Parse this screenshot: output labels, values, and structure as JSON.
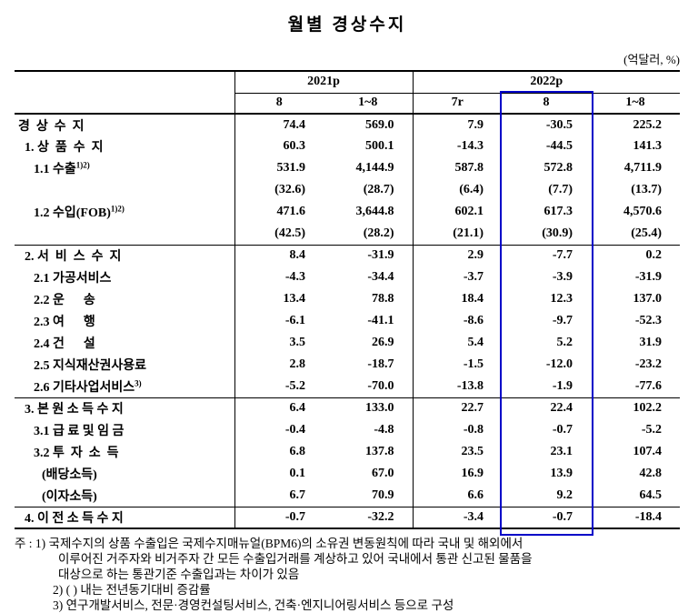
{
  "title": "월별 경상수지",
  "unit_label": "(억달러, %)",
  "table": {
    "col_groups": [
      {
        "label": "2021p"
      },
      {
        "label": "2022p"
      }
    ],
    "col_headers": [
      "8",
      "1~8",
      "7r",
      "8",
      "1~8"
    ],
    "highlight_color": "#0000c8",
    "rows": [
      {
        "label": "경  상  수  지",
        "indent": 0,
        "values": [
          "74.4",
          "569.0",
          "7.9",
          "-30.5",
          "225.2"
        ]
      },
      {
        "label": "1. 상  품  수  지",
        "indent": 1,
        "values": [
          "60.3",
          "500.1",
          "-14.3",
          "-44.5",
          "141.3"
        ]
      },
      {
        "label": "1.1 수출",
        "sup": "1)2)",
        "indent": 2,
        "values": [
          "531.9",
          "4,144.9",
          "587.8",
          "572.8",
          "4,711.9"
        ]
      },
      {
        "label": "",
        "indent": 2,
        "values": [
          "(32.6)",
          "(28.7)",
          "(6.4)",
          "(7.7)",
          "(13.7)"
        ]
      },
      {
        "label": "1.2 수입(FOB)",
        "sup": "1)2)",
        "indent": 2,
        "values": [
          "471.6",
          "3,644.8",
          "602.1",
          "617.3",
          "4,570.6"
        ]
      },
      {
        "label": "",
        "indent": 2,
        "values": [
          "(42.5)",
          "(28.2)",
          "(21.1)",
          "(30.9)",
          "(25.4)"
        ]
      },
      {
        "label": "2. 서  비  스  수  지",
        "indent": 1,
        "section_start": true,
        "values": [
          "8.4",
          "-31.9",
          "2.9",
          "-7.7",
          "0.2"
        ]
      },
      {
        "label": "2.1 가공서비스",
        "indent": 2,
        "values": [
          "-4.3",
          "-34.4",
          "-3.7",
          "-3.9",
          "-31.9"
        ]
      },
      {
        "label": "2.2 운      송",
        "indent": 2,
        "values": [
          "13.4",
          "78.8",
          "18.4",
          "12.3",
          "137.0"
        ]
      },
      {
        "label": "2.3 여      행",
        "indent": 2,
        "values": [
          "-6.1",
          "-41.1",
          "-8.6",
          "-9.7",
          "-52.3"
        ]
      },
      {
        "label": "2.4 건      설",
        "indent": 2,
        "values": [
          "3.5",
          "26.9",
          "5.4",
          "5.2",
          "31.9"
        ]
      },
      {
        "label": "2.5 지식재산권사용료",
        "indent": 2,
        "values": [
          "2.8",
          "-18.7",
          "-1.5",
          "-12.0",
          "-23.2"
        ]
      },
      {
        "label": "2.6 기타사업서비스",
        "sup": "3)",
        "indent": 2,
        "values": [
          "-5.2",
          "-70.0",
          "-13.8",
          "-1.9",
          "-77.6"
        ]
      },
      {
        "label": "3. 본 원 소 득 수 지",
        "indent": 1,
        "section_start": true,
        "values": [
          "6.4",
          "133.0",
          "22.7",
          "22.4",
          "102.2"
        ]
      },
      {
        "label": "3.1 급 료 및 임 금",
        "indent": 2,
        "values": [
          "-0.4",
          "-4.8",
          "-0.8",
          "-0.7",
          "-5.2"
        ]
      },
      {
        "label": "3.2 투  자  소  득",
        "indent": 2,
        "values": [
          "6.8",
          "137.8",
          "23.5",
          "23.1",
          "107.4"
        ]
      },
      {
        "label": "(배당소득)",
        "indent": 3,
        "values": [
          "0.1",
          "67.0",
          "16.9",
          "13.9",
          "42.8"
        ]
      },
      {
        "label": "(이자소득)",
        "indent": 3,
        "values": [
          "6.7",
          "70.9",
          "6.6",
          "9.2",
          "64.5"
        ]
      },
      {
        "label": "4. 이 전 소 득 수 지",
        "indent": 1,
        "section_start": true,
        "values": [
          "-0.7",
          "-32.2",
          "-3.4",
          "-0.7",
          "-18.4"
        ]
      }
    ]
  },
  "footnotes": {
    "lines": [
      "주 : 1) 국제수지의 상품 수출입은 국제수지매뉴얼(BPM6)의 소유권 변동원칙에 따라 국내 및 해외에서",
      "이루어진 거주자와 비거주자 간 모든 수출입거래를 계상하고 있어 국내에서 통관 신고된 물품을",
      "대상으로 하는 통관기준 수출입과는 차이가 있음",
      "2) (  ) 내는 전년동기대비 증감률",
      "3) 연구개발서비스, 전문·경영컨설팅서비스, 건축·엔지니어링서비스 등으로 구성"
    ]
  }
}
